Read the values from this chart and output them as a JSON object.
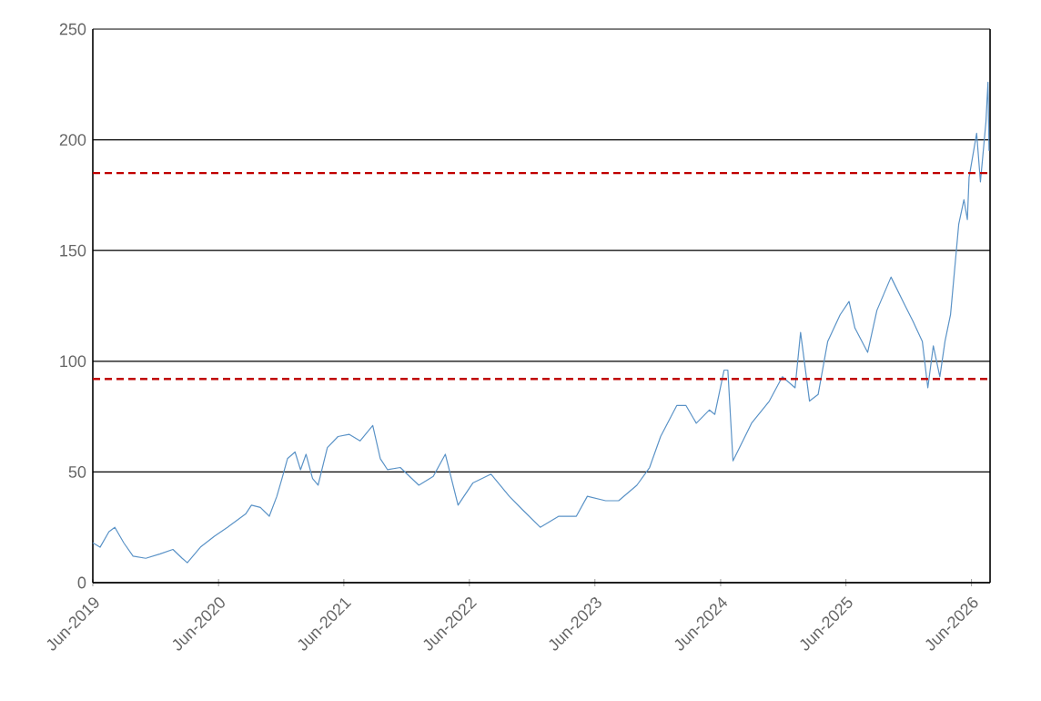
{
  "chart_data": {
    "type": "line",
    "color": "#5b93c7",
    "grid": "y",
    "line_style": "solid",
    "x": [
      "2019-06-01",
      "2019-06-22",
      "2019-07-18",
      "2019-08-04",
      "2019-08-30",
      "2019-09-26",
      "2019-11-02",
      "2019-12-14",
      "2020-01-20",
      "2020-02-16",
      "2020-03-02",
      "2020-04-09",
      "2020-05-20",
      "2020-06-27",
      "2020-07-23",
      "2020-08-19",
      "2020-09-05",
      "2020-10-01",
      "2020-10-27",
      "2020-11-18",
      "2020-12-03",
      "2020-12-19",
      "2021-01-10",
      "2021-01-26",
      "2021-02-11",
      "2021-03-02",
      "2021-03-18",
      "2021-04-14",
      "2021-05-15",
      "2021-06-16",
      "2021-07-18",
      "2021-08-24",
      "2021-09-15",
      "2021-10-06",
      "2021-11-12",
      "2022-01-05",
      "2022-02-16",
      "2022-03-23",
      "2022-04-29",
      "2022-06-11",
      "2022-08-03",
      "2022-09-25",
      "2022-11-02",
      "2022-12-24",
      "2023-02-16",
      "2023-04-08",
      "2023-05-10",
      "2023-07-02",
      "2023-08-09",
      "2023-10-01",
      "2023-11-07",
      "2023-12-09",
      "2024-01-25",
      "2024-02-21",
      "2024-03-22",
      "2024-04-29",
      "2024-05-15",
      "2024-06-11",
      "2024-06-22",
      "2024-07-07",
      "2024-08-30",
      "2024-10-21",
      "2024-11-28",
      "2025-01-04",
      "2025-01-20",
      "2025-02-15",
      "2025-03-12",
      "2025-04-09",
      "2025-05-15",
      "2025-06-10",
      "2025-06-27",
      "2025-08-03",
      "2025-08-30",
      "2025-10-10",
      "2025-11-17",
      "2025-12-13",
      "2026-01-09",
      "2026-01-25",
      "2026-02-10",
      "2026-03-01",
      "2026-03-16",
      "2026-04-01",
      "2026-04-25",
      "2026-05-10",
      "2026-05-20",
      "2026-05-25",
      "2026-06-16",
      "2026-06-27",
      "2026-07-13",
      "2026-07-19",
      "2026-07-22"
    ],
    "values": [
      18,
      16,
      23,
      25,
      18,
      12,
      11,
      13,
      15,
      11,
      9,
      16,
      21,
      25,
      28,
      31,
      35,
      34,
      30,
      39,
      47,
      56,
      59,
      51,
      58,
      47,
      44,
      61,
      66,
      67,
      64,
      71,
      56,
      51,
      52,
      44,
      48,
      58,
      35,
      45,
      49,
      39,
      33,
      25,
      30,
      30,
      39,
      37,
      37,
      44,
      52,
      66,
      80,
      80,
      72,
      78,
      76,
      96,
      96,
      55,
      72,
      82,
      93,
      88,
      113,
      82,
      85,
      109,
      121,
      127,
      115,
      104,
      123,
      138,
      126,
      118,
      109,
      88,
      107,
      93,
      109,
      121,
      162,
      173,
      164,
      183,
      203,
      181,
      208,
      226,
      195
    ],
    "xlim": [
      "2019-06-01",
      "2026-07-25"
    ],
    "xticks": [
      {
        "value": "2019-06-01",
        "label": "Jun-2019"
      },
      {
        "value": "2020-06-01",
        "label": "Jun-2020"
      },
      {
        "value": "2021-06-01",
        "label": "Jun-2021"
      },
      {
        "value": "2022-06-01",
        "label": "Jun-2022"
      },
      {
        "value": "2023-06-01",
        "label": "Jun-2023"
      },
      {
        "value": "2024-06-01",
        "label": "Jun-2024"
      },
      {
        "value": "2025-06-01",
        "label": "Jun-2025"
      },
      {
        "value": "2026-06-01",
        "label": "Jun-2026"
      }
    ],
    "ylim": [
      0,
      250
    ],
    "yticks": [
      0,
      50,
      100,
      150,
      200,
      250
    ],
    "ref_lines": [
      {
        "axis": "y",
        "value": 185,
        "color": "#c00000",
        "line_style": "dashed"
      },
      {
        "axis": "y",
        "value": 92,
        "color": "#c00000",
        "line_style": "dashed"
      }
    ]
  }
}
